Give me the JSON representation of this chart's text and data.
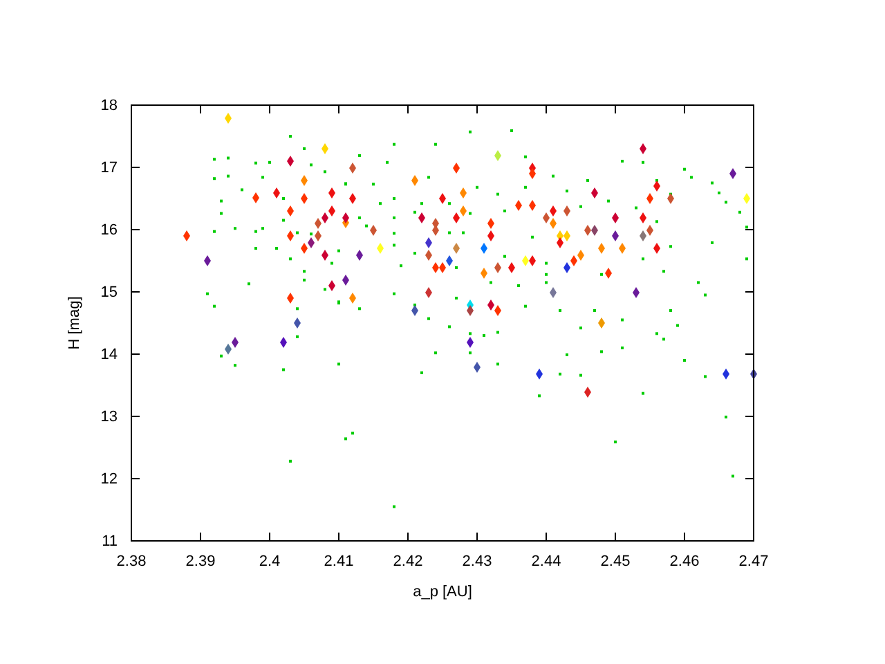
{
  "chart_data": {
    "type": "scatter",
    "xlabel": "a_p [AU]",
    "ylabel": "H [mag]",
    "xlim": [
      2.38,
      2.47
    ],
    "ylim": [
      11,
      18
    ],
    "xticks": [
      2.38,
      2.39,
      {
        "value": 2.4,
        "label": "2.4"
      },
      2.41,
      2.42,
      2.43,
      2.44,
      2.45,
      2.46,
      2.47
    ],
    "yticks": [
      11,
      12,
      13,
      14,
      15,
      16,
      17,
      18
    ],
    "grid": false,
    "series": [
      {
        "color": "#00cc00",
        "marker": "square",
        "x": [
          2.403,
          2.392,
          2.394,
          2.398,
          2.4,
          2.405,
          2.406,
          2.392,
          2.394,
          2.399,
          2.393,
          2.393,
          2.396,
          2.392,
          2.395,
          2.398,
          2.399,
          2.398,
          2.401,
          2.403,
          2.405,
          2.405,
          2.397,
          2.391,
          2.392,
          2.404,
          2.409,
          2.408,
          2.41,
          2.41,
          2.411,
          2.408,
          2.402,
          2.402,
          2.404,
          2.406,
          2.429,
          2.435,
          2.413,
          2.418,
          2.424,
          2.417,
          2.437,
          2.411,
          2.415,
          2.423,
          2.43,
          2.433,
          2.437,
          2.416,
          2.418,
          2.422,
          2.426,
          2.434,
          2.413,
          2.418,
          2.421,
          2.429,
          2.414,
          2.418,
          2.426,
          2.428,
          2.438,
          2.418,
          2.421,
          2.427,
          2.434,
          2.419,
          2.436,
          2.44,
          2.432,
          2.418,
          2.421,
          2.427,
          2.41,
          2.413,
          2.423,
          2.426,
          2.437,
          2.451,
          2.454,
          2.46,
          2.461,
          2.464,
          2.446,
          2.443,
          2.441,
          2.453,
          2.456,
          2.458,
          2.465,
          2.466,
          2.468,
          2.469,
          2.445,
          2.449,
          2.456,
          2.464,
          2.458,
          2.454,
          2.44,
          2.448,
          2.457,
          2.462,
          2.463,
          2.442,
          2.447,
          2.458,
          2.445,
          2.451,
          2.459,
          2.469,
          2.44,
          2.393,
          2.395,
          2.402,
          2.404,
          2.41,
          2.403,
          2.429,
          2.431,
          2.433,
          2.424,
          2.429,
          2.422,
          2.433,
          2.439,
          2.411,
          2.412,
          2.418,
          2.443,
          2.448,
          2.451,
          2.456,
          2.457,
          2.46,
          2.463,
          2.442,
          2.445,
          2.454,
          2.466,
          2.45,
          2.467
        ],
        "values": [
          17.5,
          17.13,
          17.15,
          17.07,
          17.08,
          17.3,
          17.04,
          16.82,
          16.86,
          16.84,
          16.46,
          16.26,
          16.64,
          15.97,
          16.02,
          15.97,
          16.02,
          15.7,
          15.7,
          15.53,
          15.33,
          15.19,
          15.13,
          14.97,
          14.77,
          14.73,
          15.46,
          15.04,
          14.84,
          15.66,
          16.74,
          16.93,
          16.5,
          16.15,
          15.95,
          15.93,
          17.57,
          17.59,
          17.19,
          17.37,
          17.37,
          17.08,
          17.17,
          16.73,
          16.73,
          16.84,
          16.68,
          16.57,
          16.68,
          16.42,
          16.5,
          16.42,
          16.42,
          16.3,
          16.19,
          16.19,
          16.28,
          16.26,
          16.06,
          15.94,
          15.95,
          15.95,
          15.88,
          15.75,
          15.62,
          15.39,
          15.57,
          15.42,
          15.1,
          15.28,
          15.15,
          14.97,
          14.79,
          14.9,
          14.82,
          14.73,
          14.57,
          14.44,
          14.77,
          17.1,
          17.08,
          16.97,
          16.84,
          16.75,
          16.79,
          16.62,
          16.86,
          16.35,
          16.79,
          16.57,
          16.59,
          16.44,
          16.28,
          16.04,
          16.37,
          16.46,
          16.13,
          15.79,
          15.73,
          15.53,
          15.46,
          15.28,
          15.33,
          15.15,
          14.95,
          14.7,
          14.7,
          14.7,
          14.42,
          14.55,
          14.46,
          15.53,
          15.15,
          13.97,
          13.82,
          13.75,
          14.28,
          13.84,
          12.28,
          14.33,
          14.3,
          14.35,
          14.02,
          14.02,
          13.7,
          13.84,
          13.33,
          12.64,
          12.73,
          11.55,
          13.99,
          14.04,
          14.1,
          14.33,
          14.24,
          13.9,
          13.64,
          13.68,
          13.66,
          13.37,
          12.99,
          12.59,
          12.04
        ]
      },
      {
        "marker": "diamond",
        "x": [
          2.394,
          2.408,
          2.403,
          2.405,
          2.401,
          2.398,
          2.405,
          2.409,
          2.403,
          2.409,
          2.408,
          2.407,
          2.411,
          2.388,
          2.403,
          2.407,
          2.405,
          2.406,
          2.408,
          2.391,
          2.411,
          2.409,
          2.403,
          2.404,
          2.433,
          2.412,
          2.427,
          2.438,
          2.438,
          2.421,
          2.428,
          2.412,
          2.425,
          2.436,
          2.438,
          2.428,
          2.411,
          2.424,
          2.422,
          2.427,
          2.432,
          2.441,
          2.44,
          2.441,
          2.424,
          2.415,
          2.432,
          2.423,
          2.427,
          2.431,
          2.416,
          2.413,
          2.423,
          2.426,
          2.424,
          2.425,
          2.433,
          2.435,
          2.437,
          2.438,
          2.431,
          2.412,
          2.423,
          2.421,
          2.429,
          2.429,
          2.432,
          2.433,
          2.454,
          2.467,
          2.469,
          2.456,
          2.455,
          2.458,
          2.447,
          2.443,
          2.45,
          2.454,
          2.442,
          2.443,
          2.446,
          2.447,
          2.455,
          2.45,
          2.454,
          2.442,
          2.448,
          2.451,
          2.456,
          2.445,
          2.444,
          2.443,
          2.449,
          2.441,
          2.453,
          2.448,
          2.394,
          2.395,
          2.402,
          2.429,
          2.43,
          2.439,
          2.446,
          2.466,
          2.47
        ],
        "values": [
          17.79,
          17.3,
          17.1,
          16.79,
          16.59,
          16.51,
          16.5,
          16.59,
          16.3,
          16.3,
          16.19,
          16.1,
          16.11,
          15.9,
          15.9,
          15.9,
          15.7,
          15.79,
          15.59,
          15.5,
          15.19,
          15.1,
          14.9,
          14.5,
          17.19,
          16.99,
          16.99,
          16.99,
          16.9,
          16.79,
          16.59,
          16.5,
          16.5,
          16.39,
          16.39,
          16.3,
          16.19,
          16.1,
          16.19,
          16.19,
          16.1,
          16.3,
          16.19,
          16.1,
          15.99,
          15.99,
          15.9,
          15.79,
          15.7,
          15.7,
          15.7,
          15.59,
          15.59,
          15.5,
          15.39,
          15.39,
          15.39,
          15.39,
          15.5,
          15.5,
          15.3,
          14.9,
          14.99,
          14.7,
          14.79,
          14.7,
          14.79,
          14.7,
          17.3,
          16.9,
          16.5,
          16.7,
          16.5,
          16.5,
          16.59,
          16.3,
          16.19,
          16.19,
          15.9,
          15.9,
          15.99,
          15.99,
          15.99,
          15.9,
          15.9,
          15.79,
          15.7,
          15.7,
          15.7,
          15.59,
          15.5,
          15.39,
          15.3,
          14.99,
          14.99,
          14.5,
          14.08,
          14.19,
          14.19,
          14.19,
          13.79,
          13.68,
          13.39,
          13.68,
          13.68
        ],
        "colors": [
          "#ffd700",
          "#ffd700",
          "#cc0033",
          "#ff8800",
          "#ee1111",
          "#ff3300",
          "#ff3300",
          "#ee1111",
          "#ff3300",
          "#ee1111",
          "#cc0033",
          "#cc5533",
          "#ff8800",
          "#ff3300",
          "#ff3300",
          "#cc5533",
          "#ff3300",
          "#8b1a7a",
          "#cc0033",
          "#6a1b9a",
          "#6a1b9a",
          "#cc0033",
          "#ff3300",
          "#4455aa",
          "#bbee44",
          "#cc5533",
          "#ff3300",
          "#ee1111",
          "#ff3300",
          "#ff8800",
          "#ff8800",
          "#ee1111",
          "#ee1111",
          "#ff3300",
          "#ff3300",
          "#ff8800",
          "#cc0033",
          "#cc5533",
          "#cc0033",
          "#ee1111",
          "#ff3300",
          "#ee1111",
          "#cc5533",
          "#ff8800",
          "#cc5533",
          "#cc5533",
          "#ee1111",
          "#4433cc",
          "#cc8844",
          "#0077ff",
          "#ffff22",
          "#6a1b9a",
          "#cc5533",
          "#2255dd",
          "#ff3300",
          "#ff3300",
          "#cc5533",
          "#ee1111",
          "#ffff22",
          "#ee1111",
          "#ff8800",
          "#ff8800",
          "#cc3333",
          "#4455aa",
          "#00ddee",
          "#aa4444",
          "#cc0033",
          "#ff3300",
          "#cc0033",
          "#6a1b9a",
          "#ffff22",
          "#ee1111",
          "#ff3300",
          "#cc5533",
          "#cc0033",
          "#cc5533",
          "#cc0033",
          "#ee1111",
          "#ffcc00",
          "#ffcc00",
          "#cc5533",
          "#884466",
          "#cc5533",
          "#6a1b9a",
          "#887777",
          "#ee1111",
          "#ff8800",
          "#ff8800",
          "#ee1111",
          "#ff8800",
          "#ff3300",
          "#2233dd",
          "#ff3300",
          "#777799",
          "#6a1b9a",
          "#ee9900",
          "#557799",
          "#6a1b9a",
          "#5511bb",
          "#5511bb",
          "#4455aa",
          "#2233dd",
          "#dd2222",
          "#2233dd",
          "#444499"
        ]
      }
    ]
  }
}
